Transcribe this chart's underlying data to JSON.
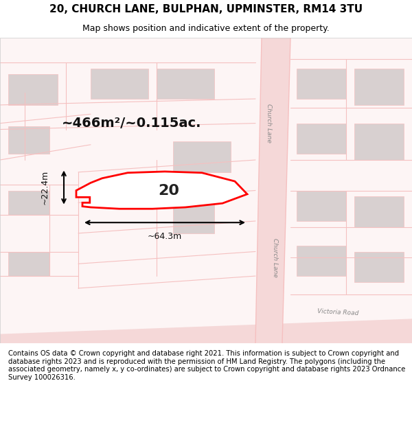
{
  "title_line1": "20, CHURCH LANE, BULPHAN, UPMINSTER, RM14 3TU",
  "title_line2": "Map shows position and indicative extent of the property.",
  "footer_text": "Contains OS data © Crown copyright and database right 2021. This information is subject to Crown copyright and database rights 2023 and is reproduced with the permission of HM Land Registry. The polygons (including the associated geometry, namely x, y co-ordinates) are subject to Crown copyright and database rights 2023 Ordnance Survey 100026316.",
  "area_label": "~466m²/~0.115ac.",
  "width_label": "~64.3m",
  "height_label": "~22.4m",
  "number_label": "20",
  "bg_color": "#ffffff",
  "map_bg_color": "#f8f0f0",
  "road_color": "#f5c0c0",
  "building_color": "#d8d0d0",
  "property_outline_color": "#ff0000",
  "property_fill_color": "#ffffff",
  "dimension_color": "#000000",
  "road_label1": "Church Lane",
  "road_label2": "Church Lane",
  "road_label3": "Victoria Road"
}
